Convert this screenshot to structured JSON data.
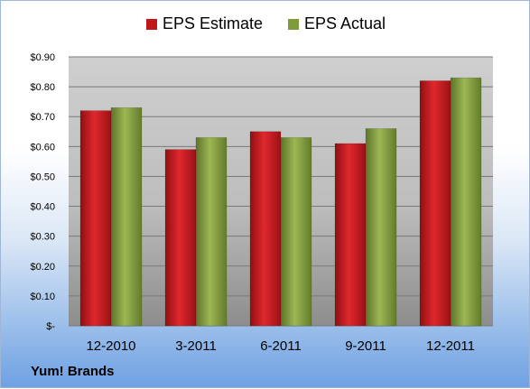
{
  "company": "Yum! Brands",
  "chart_data": {
    "type": "bar",
    "categories": [
      "12-2010",
      "3-2011",
      "6-2011",
      "9-2011",
      "12-2011"
    ],
    "series": [
      {
        "name": "EPS Estimate",
        "values": [
          0.72,
          0.59,
          0.65,
          0.61,
          0.82
        ],
        "color": "#c0171c"
      },
      {
        "name": "EPS Actual",
        "values": [
          0.73,
          0.63,
          0.63,
          0.66,
          0.83
        ],
        "color": "#7f9a3a"
      }
    ],
    "ylim": [
      0,
      0.9
    ],
    "yticks": [
      0,
      0.1,
      0.2,
      0.3,
      0.4,
      0.5,
      0.6,
      0.7,
      0.8,
      0.9
    ],
    "ytick_labels": [
      "$-",
      "$0.10",
      "$0.20",
      "$0.30",
      "$0.40",
      "$0.50",
      "$0.60",
      "$0.70",
      "$0.80",
      "$0.90"
    ],
    "grid": true,
    "legend": "top-center"
  }
}
